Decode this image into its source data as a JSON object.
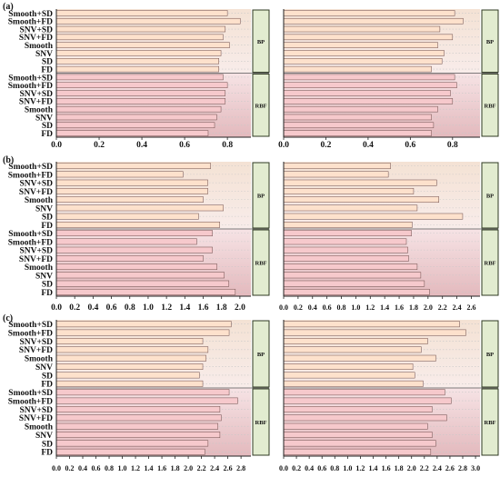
{
  "figure": {
    "colors": {
      "bp_bar": "#fde1cc",
      "rbf_bar": "#f6c9cc",
      "bar_stroke": "#6b4a48",
      "group_box": "#e2ecd0",
      "group_box_stroke": "#2f3a22",
      "band_bp_top": "#f4e2d4",
      "band_rbf_bottom": "#e3b9bd",
      "grid": "#c8c8c8"
    },
    "group_labels": [
      "BP",
      "RBF"
    ],
    "categories": [
      "Smooth+SD",
      "Smooth+FD",
      "SNV+SD",
      "SNV+FD",
      "Smooth",
      "SNV",
      "SD",
      "FD",
      "Smooth+SD",
      "Smooth+FD",
      "SNV+SD",
      "SNV+FD",
      "Smooth",
      "SNV",
      "SD",
      "FD"
    ]
  },
  "chart_data": [
    {
      "panel": "(a)",
      "side": "left",
      "type": "bar",
      "orientation": "horizontal",
      "ylabel_categories_top_to_bottom": true,
      "xticks": [
        "0.0",
        "0.2",
        "0.4",
        "0.6",
        "0.8"
      ],
      "xlim": [
        0,
        0.91
      ],
      "bp_values": [
        0.8,
        0.86,
        0.79,
        0.78,
        0.81,
        0.77,
        0.76,
        0.76
      ],
      "rbf_values": [
        0.78,
        0.8,
        0.79,
        0.79,
        0.77,
        0.75,
        0.74,
        0.71
      ]
    },
    {
      "panel": "",
      "side": "right",
      "type": "bar",
      "orientation": "horizontal",
      "xticks": [
        "0.0",
        "0.2",
        "0.4",
        "0.6",
        "0.8"
      ],
      "xlim": [
        0,
        0.93
      ],
      "bp_values": [
        0.81,
        0.85,
        0.74,
        0.8,
        0.73,
        0.76,
        0.75,
        0.7
      ],
      "rbf_values": [
        0.81,
        0.82,
        0.79,
        0.8,
        0.73,
        0.7,
        0.71,
        0.7
      ]
    },
    {
      "panel": "(b)",
      "side": "left",
      "type": "bar",
      "orientation": "horizontal",
      "xticks": [
        "0.0",
        "0.2",
        "0.4",
        "0.6",
        "0.8",
        "1.0",
        "1.2",
        "1.4",
        "1.6",
        "1.8",
        "2.0"
      ],
      "xlim": [
        0,
        2.12
      ],
      "bp_values": [
        1.68,
        1.38,
        1.65,
        1.65,
        1.6,
        1.82,
        1.55,
        1.78
      ],
      "rbf_values": [
        1.7,
        1.53,
        1.7,
        1.6,
        1.75,
        1.83,
        1.88,
        1.95
      ]
    },
    {
      "panel": "",
      "side": "right",
      "type": "bar",
      "orientation": "horizontal",
      "xticks": [
        "0.0",
        "0.2",
        "0.4",
        "0.6",
        "0.8",
        "1.0",
        "1.2",
        "1.4",
        "1.6",
        "1.8",
        "2.0",
        "2.2",
        "2.4",
        "2.6"
      ],
      "xlim": [
        0,
        2.72
      ],
      "bp_values": [
        1.48,
        1.45,
        2.12,
        1.8,
        2.15,
        1.85,
        2.48,
        1.78
      ],
      "rbf_values": [
        1.77,
        1.7,
        1.72,
        1.73,
        1.85,
        1.9,
        1.95,
        2.02
      ]
    },
    {
      "panel": "(c)",
      "side": "left",
      "type": "bar",
      "orientation": "horizontal",
      "xticks": [
        "0.0",
        "0.2",
        "0.4",
        "0.6",
        "0.8",
        "1.0",
        "1.2",
        "1.4",
        "1.6",
        "1.8",
        "2.0",
        "2.2",
        "2.4",
        "2.6",
        "2.8"
      ],
      "xlim": [
        0,
        2.95
      ],
      "bp_values": [
        2.65,
        2.62,
        2.22,
        2.3,
        2.27,
        2.22,
        2.17,
        2.22
      ],
      "rbf_values": [
        2.62,
        2.75,
        2.48,
        2.5,
        2.45,
        2.48,
        2.3,
        2.25
      ]
    },
    {
      "panel": "",
      "side": "right",
      "type": "bar",
      "orientation": "horizontal",
      "xticks": [
        "0.0",
        "0.2",
        "0.4",
        "0.6",
        "0.8",
        "1.0",
        "1.2",
        "1.4",
        "1.6",
        "1.8",
        "2.0",
        "2.2",
        "2.4",
        "2.6",
        "2.8",
        "3.0"
      ],
      "xlim": [
        0,
        3.07
      ],
      "bp_values": [
        2.75,
        2.85,
        2.25,
        2.15,
        2.38,
        2.02,
        2.05,
        2.18
      ],
      "rbf_values": [
        2.52,
        2.62,
        2.32,
        2.55,
        2.25,
        2.32,
        2.38,
        2.3
      ]
    }
  ]
}
